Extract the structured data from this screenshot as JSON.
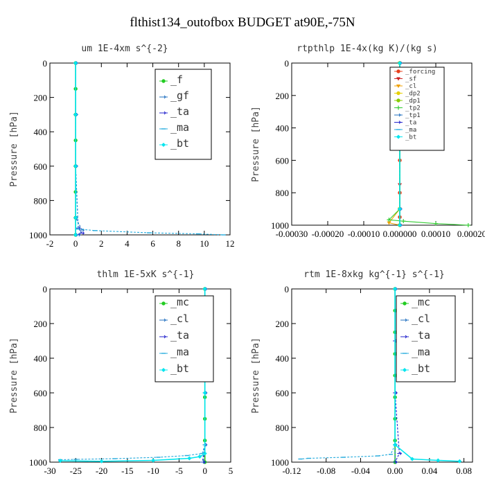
{
  "figure": {
    "suptitle": "flthist134_outofbox  BUDGET at90E,-75N"
  },
  "chart_data": [
    {
      "type": "line",
      "title": "um  1E-4xm s^{-2}",
      "ylabel": "Pressure [hPa]",
      "xlabel": "",
      "xlim": [
        -2,
        12
      ],
      "ylim": [
        1000,
        0
      ],
      "xticks": [
        -2,
        0,
        2,
        4,
        6,
        8,
        10,
        12
      ],
      "xtick_labels": [
        "-2",
        "0",
        "2",
        "4",
        "6",
        "8",
        "10",
        "12"
      ],
      "yticks": [
        0,
        200,
        400,
        600,
        800,
        1000
      ],
      "grid": false,
      "legend": "top-right",
      "series": [
        {
          "name": "_f",
          "color": "#22cc22",
          "marker": "circle",
          "x": [
            0,
            0,
            0,
            0,
            0,
            0,
            0,
            0
          ],
          "y": [
            0,
            150,
            300,
            450,
            600,
            750,
            900,
            1000
          ]
        },
        {
          "name": "_gf",
          "color": "#1f6fbf",
          "marker": "arrow",
          "x": [
            0,
            0,
            0,
            0,
            0.5,
            0.2
          ],
          "y": [
            0,
            300,
            600,
            900,
            972,
            1000
          ]
        },
        {
          "name": "_ta",
          "color": "#2222cc",
          "marker": "arrow",
          "x": [
            0,
            0,
            0,
            0.2,
            0.5,
            0
          ],
          "y": [
            0,
            300,
            600,
            960,
            990,
            1000
          ]
        },
        {
          "name": "_ma",
          "color": "#22aadd",
          "marker": "dash",
          "x": [
            0,
            0,
            0,
            0.2,
            1.5,
            5.7,
            9.5,
            11.5
          ],
          "y": [
            0,
            300,
            600,
            966,
            975,
            988,
            994,
            1000
          ]
        },
        {
          "name": "_bt",
          "color": "#00e5ee",
          "marker": "diamond",
          "x": [
            0,
            0,
            0,
            0,
            0
          ],
          "y": [
            0,
            300,
            600,
            900,
            1000
          ]
        }
      ]
    },
    {
      "type": "line",
      "title": "rtpthlp  1E-4x(kg K)/(kg s)",
      "ylabel": "Pressure [hPa]",
      "xlabel": "",
      "xlim": [
        -0.0003,
        0.0002
      ],
      "ylim": [
        1000,
        0
      ],
      "xticks": [
        -0.0003,
        -0.0002,
        -0.0001,
        0,
        0.0001,
        0.0002
      ],
      "xtick_labels": [
        "-0.00030",
        "-0.00020",
        "-0.00010",
        "0.000000",
        "0.00010",
        "0.00020"
      ],
      "yticks": [
        0,
        200,
        400,
        600,
        800,
        1000
      ],
      "grid": false,
      "legend": "top-right",
      "series": [
        {
          "name": "_forcing",
          "color": "#e8401c",
          "marker": "circle",
          "x": [
            0,
            0,
            0,
            0,
            0,
            0,
            0
          ],
          "y": [
            0,
            200,
            400,
            600,
            800,
            950,
            1000
          ]
        },
        {
          "name": "_sf",
          "color": "#cc2222",
          "marker": "triangle",
          "x": [
            0,
            0,
            0,
            0,
            0
          ],
          "y": [
            0,
            250,
            500,
            750,
            1000
          ]
        },
        {
          "name": "_cl",
          "color": "#f0a000",
          "marker": "triangle",
          "x": [
            0,
            0,
            0,
            -3e-05,
            0
          ],
          "y": [
            0,
            500,
            900,
            985,
            1000
          ]
        },
        {
          "name": "_dp2",
          "color": "#e6d000",
          "marker": "circle",
          "x": [
            0,
            0,
            0,
            0
          ],
          "y": [
            0,
            500,
            900,
            1000
          ]
        },
        {
          "name": "_dp1",
          "color": "#88cc00",
          "marker": "circle",
          "x": [
            0,
            0,
            0,
            0
          ],
          "y": [
            0,
            500,
            900,
            1000
          ]
        },
        {
          "name": "_tp2",
          "color": "#33cc33",
          "marker": "star",
          "x": [
            0,
            0,
            -3e-05,
            1e-05,
            0.0001,
            0.00019
          ],
          "y": [
            0,
            900,
            967,
            975,
            990,
            1000
          ]
        },
        {
          "name": "_tp1",
          "color": "#1f6fbf",
          "marker": "arrow",
          "x": [
            0,
            0,
            0,
            0
          ],
          "y": [
            0,
            500,
            900,
            1000
          ]
        },
        {
          "name": "_ta",
          "color": "#2222cc",
          "marker": "arrow",
          "x": [
            0,
            0,
            0,
            0
          ],
          "y": [
            0,
            500,
            900,
            1000
          ]
        },
        {
          "name": "_ma",
          "color": "#22aadd",
          "marker": "dash",
          "x": [
            0,
            0,
            0,
            0
          ],
          "y": [
            0,
            500,
            900,
            1000
          ]
        },
        {
          "name": "_bt",
          "color": "#00e5ee",
          "marker": "diamond",
          "x": [
            0,
            0,
            0,
            0
          ],
          "y": [
            0,
            500,
            900,
            1000
          ]
        }
      ]
    },
    {
      "type": "line",
      "title": "thlm  1E-5xK s^{-1}",
      "ylabel": "Pressure [hPa]",
      "xlabel": "",
      "xlim": [
        -30,
        5
      ],
      "ylim": [
        1000,
        0
      ],
      "xticks": [
        -30,
        -25,
        -20,
        -15,
        -10,
        -5,
        0,
        5
      ],
      "xtick_labels": [
        "-30",
        "-25",
        "-20",
        "-15",
        "-10",
        "-5",
        "0",
        "5"
      ],
      "yticks": [
        0,
        200,
        400,
        600,
        800,
        1000
      ],
      "grid": false,
      "legend": "top-right",
      "series": [
        {
          "name": "_mc",
          "color": "#22cc22",
          "marker": "circle",
          "x": [
            0,
            0,
            0,
            0,
            0,
            0,
            0,
            0,
            0
          ],
          "y": [
            0,
            125,
            250,
            375,
            500,
            625,
            750,
            875,
            1000
          ]
        },
        {
          "name": "_cl",
          "color": "#1f6fbf",
          "marker": "arrow",
          "x": [
            0,
            0,
            0,
            0,
            -0.5
          ],
          "y": [
            0,
            300,
            600,
            900,
            1000
          ]
        },
        {
          "name": "_ta",
          "color": "#2222cc",
          "marker": "arrow",
          "x": [
            0,
            0,
            0,
            0,
            -0.3
          ],
          "y": [
            0,
            300,
            600,
            900,
            1000
          ]
        },
        {
          "name": "_ma",
          "color": "#22aadd",
          "marker": "dash",
          "x": [
            0,
            0,
            -0.5,
            -3.5,
            -9,
            -17.5,
            -25,
            -28
          ],
          "y": [
            0,
            900,
            950,
            962,
            972,
            980,
            984,
            986
          ]
        },
        {
          "name": "_bt",
          "color": "#00e5ee",
          "marker": "diamond",
          "x": [
            0,
            0,
            0,
            -1,
            -3,
            -10,
            -20,
            -28
          ],
          "y": [
            0,
            600,
            950,
            968,
            978,
            990,
            995,
            992
          ]
        }
      ]
    },
    {
      "type": "line",
      "title": "rtm  1E-8xkg kg^{-1} s^{-1}",
      "ylabel": "Pressure [hPa]",
      "xlabel": "",
      "xlim": [
        -0.12,
        0.09
      ],
      "ylim": [
        1000,
        0
      ],
      "xticks": [
        -0.12,
        -0.08,
        -0.04,
        0,
        0.04,
        0.08
      ],
      "xtick_labels": [
        "-0.12",
        "-0.08",
        "-0.04",
        "0.00",
        "0.04",
        "0.08"
      ],
      "yticks": [
        0,
        200,
        400,
        600,
        800,
        1000
      ],
      "grid": false,
      "legend": "top-right",
      "series": [
        {
          "name": "_mc",
          "color": "#22cc22",
          "marker": "circle",
          "x": [
            0,
            0,
            0,
            0,
            0,
            0,
            0,
            0,
            0
          ],
          "y": [
            0,
            125,
            250,
            375,
            500,
            625,
            750,
            875,
            1000
          ]
        },
        {
          "name": "_cl",
          "color": "#1f6fbf",
          "marker": "arrow",
          "x": [
            0,
            0,
            0,
            0,
            0
          ],
          "y": [
            0,
            300,
            600,
            900,
            1000
          ]
        },
        {
          "name": "_ta",
          "color": "#2222cc",
          "marker": "arrow",
          "x": [
            0,
            0,
            0,
            0.005,
            0
          ],
          "y": [
            0,
            300,
            600,
            950,
            1000
          ]
        },
        {
          "name": "_ma",
          "color": "#22aadd",
          "marker": "dash",
          "x": [
            0,
            0,
            -0.005,
            -0.02,
            -0.06,
            -0.1,
            -0.11
          ],
          "y": [
            0,
            900,
            955,
            964,
            972,
            978,
            982
          ]
        },
        {
          "name": "_bt",
          "color": "#00e5ee",
          "marker": "diamond",
          "x": [
            0,
            0,
            0.02,
            0.05,
            0.075
          ],
          "y": [
            0,
            900,
            982,
            990,
            995
          ]
        }
      ]
    }
  ]
}
